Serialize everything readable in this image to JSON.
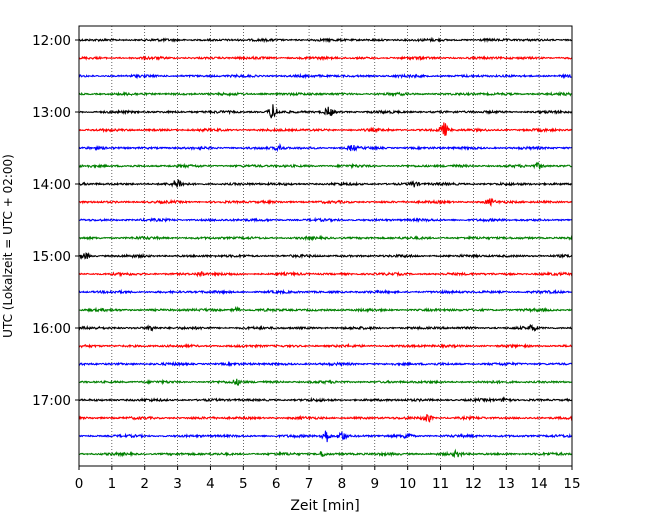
{
  "chart_data": {
    "type": "line",
    "title": "",
    "xlabel": "Zeit  [min]",
    "ylabel": "UTC (Lokalzeit = UTC + 02:00)",
    "xlim": [
      0,
      15
    ],
    "x_ticks": [
      0,
      1,
      2,
      3,
      4,
      5,
      6,
      7,
      8,
      9,
      10,
      11,
      12,
      13,
      14,
      15
    ],
    "y_ticks": [
      "12:00",
      "13:00",
      "14:00",
      "15:00",
      "16:00",
      "17:00"
    ],
    "grid": "vertical dotted",
    "trace_interval_min": 15,
    "first_trace_utc": "12:00",
    "trace_count": 24,
    "color_cycle": [
      "#000000",
      "#ff0000",
      "#0000ff",
      "#008000"
    ],
    "events": [
      {
        "trace": "13:00",
        "x": 5.9,
        "amplitude": "strong"
      },
      {
        "trace": "13:00",
        "x": 7.6,
        "amplitude": "medium"
      },
      {
        "trace": "13:15",
        "x": 11.1,
        "amplitude": "strong"
      },
      {
        "trace": "13:30",
        "x": 6.1,
        "amplitude": "small"
      },
      {
        "trace": "13:30",
        "x": 8.3,
        "amplitude": "small"
      },
      {
        "trace": "13:45",
        "x": 14.0,
        "amplitude": "small"
      },
      {
        "trace": "14:00",
        "x": 3.0,
        "amplitude": "medium"
      },
      {
        "trace": "14:00",
        "x": 10.2,
        "amplitude": "small"
      },
      {
        "trace": "14:15",
        "x": 12.5,
        "amplitude": "small"
      },
      {
        "trace": "15:00",
        "x": 0.2,
        "amplitude": "small"
      },
      {
        "trace": "15:15",
        "x": 3.7,
        "amplitude": "small"
      },
      {
        "trace": "15:45",
        "x": 4.8,
        "amplitude": "small"
      },
      {
        "trace": "16:00",
        "x": 2.2,
        "amplitude": "small"
      },
      {
        "trace": "16:00",
        "x": 13.8,
        "amplitude": "small"
      },
      {
        "trace": "16:45",
        "x": 4.8,
        "amplitude": "small"
      },
      {
        "trace": "17:00",
        "x": 13.0,
        "amplitude": "small"
      },
      {
        "trace": "17:15",
        "x": 10.6,
        "amplitude": "medium"
      },
      {
        "trace": "17:30",
        "x": 7.5,
        "amplitude": "strong"
      },
      {
        "trace": "17:30",
        "x": 8.0,
        "amplitude": "medium"
      },
      {
        "trace": "17:30",
        "x": 10.0,
        "amplitude": "small"
      },
      {
        "trace": "17:45",
        "x": 7.4,
        "amplitude": "small"
      },
      {
        "trace": "17:45",
        "x": 11.5,
        "amplitude": "small"
      }
    ]
  }
}
